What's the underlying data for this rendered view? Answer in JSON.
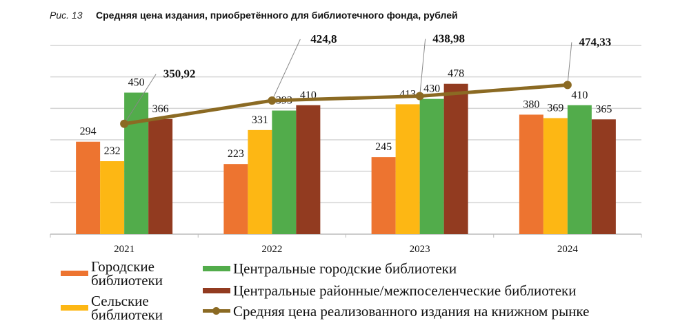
{
  "figure_label": "Рис. 13",
  "chart_data": {
    "type": "bar",
    "title": "Средняя цена издания, приобретённого для библиотечного фонда, рублей",
    "categories": [
      "2021",
      "2022",
      "2023",
      "2024"
    ],
    "ylim": [
      0,
      600
    ],
    "grid": true,
    "y_tick_labels_shown": false,
    "legend_position": "bottom",
    "series": [
      {
        "name": "Городские библиотеки",
        "type": "bar",
        "color": "#ED7430",
        "values": [
          294,
          223,
          245,
          380
        ]
      },
      {
        "name": "Сельские библиотеки",
        "type": "bar",
        "color": "#FDB714",
        "values": [
          232,
          331,
          413,
          369
        ]
      },
      {
        "name": "Центральные городские библиотеки",
        "type": "bar",
        "color": "#52AC4B",
        "values": [
          450,
          393,
          430,
          410
        ]
      },
      {
        "name": "Центральные районные/межпоселенческие библиотеки",
        "type": "bar",
        "color": "#923B20",
        "values": [
          366,
          410,
          478,
          365
        ]
      },
      {
        "name": "Средняя цена реализованного издания на книжном рынке",
        "type": "line",
        "color": "#8B6A23",
        "values": [
          350.92,
          424.8,
          438.98,
          474.33
        ],
        "labels": [
          "350,92",
          "424,8",
          "438,98",
          "474,33"
        ]
      }
    ]
  }
}
